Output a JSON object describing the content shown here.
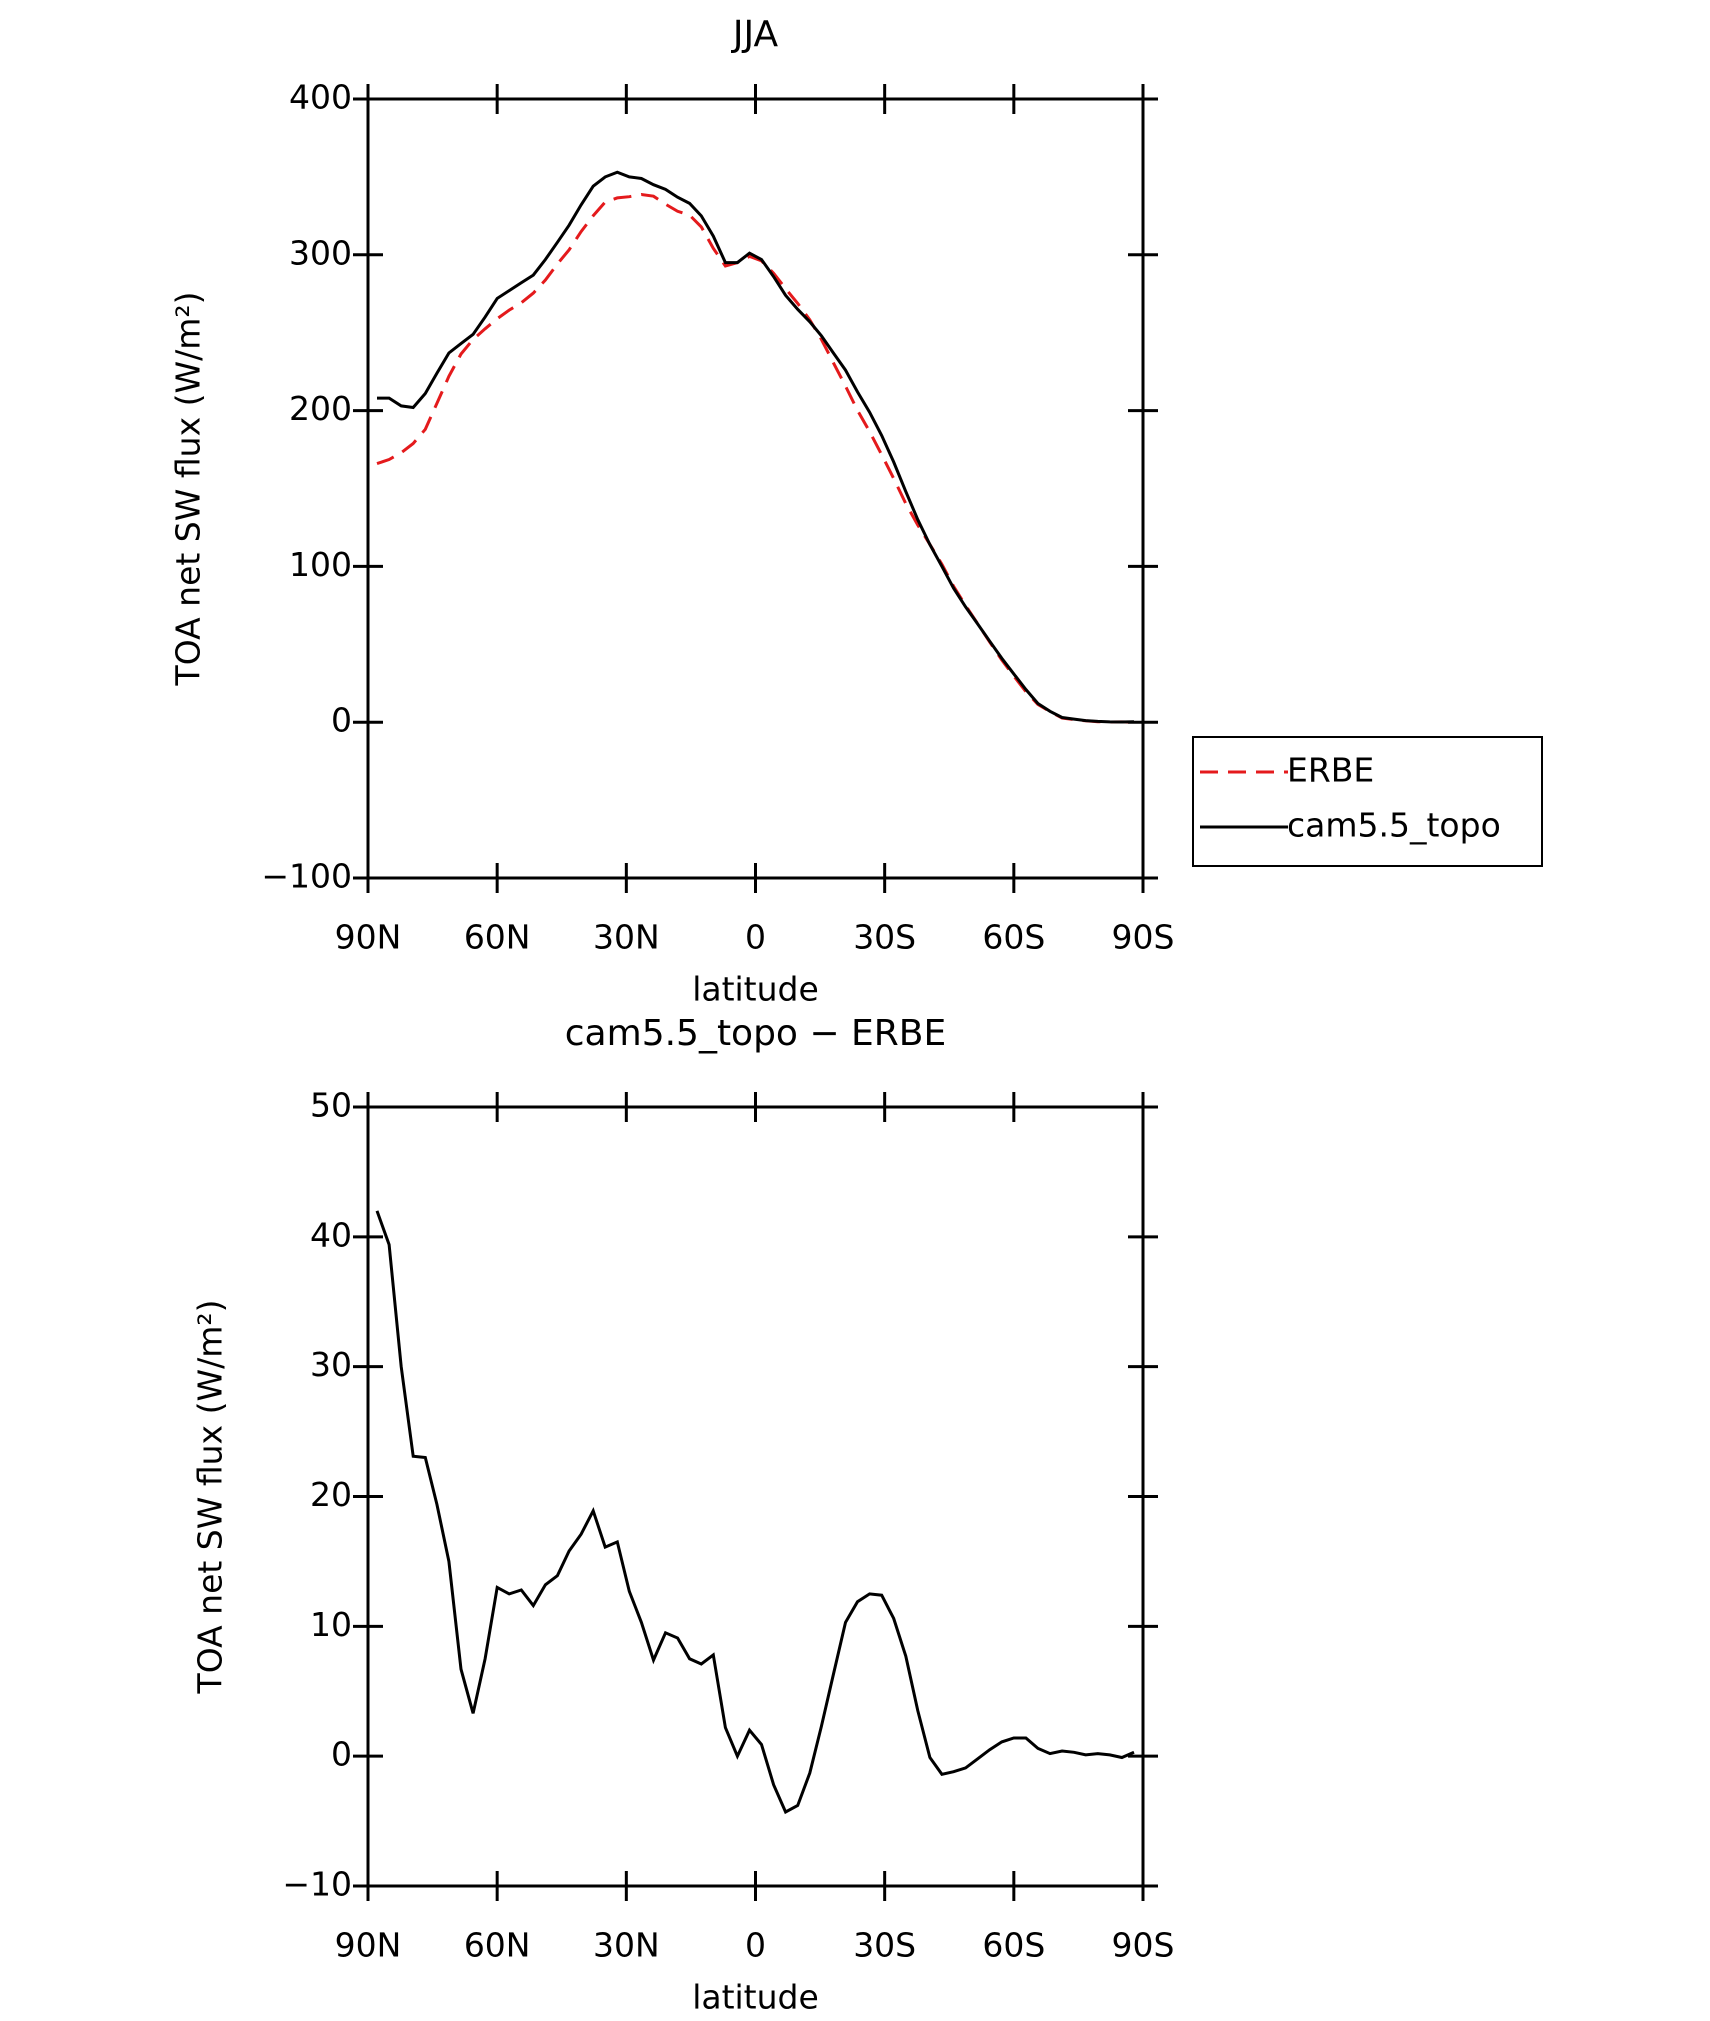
{
  "chart_data": [
    {
      "type": "line",
      "title": "JJA",
      "xlabel": "latitude",
      "ylabel": "TOA net SW flux (W/m²)",
      "x": [
        87.9,
        85.1,
        82.3,
        79.5,
        76.7,
        74.0,
        71.2,
        68.4,
        65.6,
        62.8,
        60.0,
        57.2,
        54.4,
        51.6,
        48.8,
        46.0,
        43.3,
        40.5,
        37.7,
        34.9,
        32.1,
        29.3,
        26.5,
        23.7,
        20.9,
        18.1,
        15.3,
        12.6,
        9.8,
        7.0,
        4.2,
        1.4,
        -1.4,
        -4.2,
        -7.0,
        -9.8,
        -12.6,
        -15.3,
        -18.1,
        -20.9,
        -23.7,
        -26.5,
        -29.3,
        -32.1,
        -34.9,
        -37.7,
        -40.5,
        -43.3,
        -46.0,
        -48.8,
        -51.6,
        -54.4,
        -57.2,
        -60.0,
        -62.8,
        -65.6,
        -68.4,
        -71.2,
        -74.0,
        -76.7,
        -79.5,
        -82.3,
        -85.1,
        -87.9
      ],
      "series": [
        {
          "name": "ERBE",
          "color": "#e41a1c",
          "linestyle": "dashed",
          "values": [
            166,
            168.6,
            173,
            178.9,
            188,
            204.6,
            222,
            236.3,
            245.7,
            252.5,
            259,
            264.5,
            269.2,
            275.4,
            283.8,
            294.1,
            303.2,
            314.9,
            325.1,
            333.9,
            336.5,
            337.3,
            338.7,
            337.6,
            332.5,
            327.9,
            325.5,
            317.9,
            304.2,
            292.8,
            295,
            299,
            296.1,
            288.2,
            278.3,
            268.8,
            258.3,
            245.7,
            230.7,
            215.7,
            200.1,
            186.5,
            171.6,
            156.4,
            140.3,
            126.5,
            114.1,
            101.4,
            87.2,
            74.9,
            63.2,
            51.5,
            39.9,
            29.6,
            19.6,
            11.4,
            6.8,
            2.6,
            1.7,
            0.9,
            0.3,
            0.1,
            0.2,
            0
          ]
        },
        {
          "name": "cam5.5_topo",
          "color": "#000000",
          "linestyle": "solid",
          "values": [
            208,
            208,
            203,
            202,
            211,
            224,
            237,
            243,
            249,
            260,
            272,
            277,
            282,
            287,
            297,
            308,
            319,
            332,
            344,
            350,
            353,
            350,
            349,
            345,
            342,
            337,
            333,
            325,
            312,
            295,
            295,
            301,
            297,
            286,
            274,
            265,
            257,
            248,
            237,
            226,
            212,
            199,
            184,
            167,
            148,
            130,
            114,
            100,
            86,
            74,
            63,
            52,
            41,
            31,
            21,
            12,
            7,
            3,
            2,
            1,
            0.5,
            0.2,
            0.1,
            0.3
          ]
        }
      ],
      "xlim": [
        90,
        -90
      ],
      "xticks": [
        {
          "value": 90,
          "label": "90N"
        },
        {
          "value": 60,
          "label": "60N"
        },
        {
          "value": 30,
          "label": "30N"
        },
        0,
        {
          "value": -30,
          "label": "30S"
        },
        {
          "value": -60,
          "label": "60S"
        },
        {
          "value": -90,
          "label": "90S"
        }
      ],
      "ylim": [
        -100,
        400
      ],
      "yticks": [
        {
          "value": -100,
          "label": "−100"
        },
        0,
        100,
        200,
        300,
        400
      ],
      "legend": "right"
    },
    {
      "type": "line",
      "title": "cam5.5_topo − ERBE",
      "xlabel": "latitude",
      "ylabel": "TOA net SW flux (W/m²)",
      "x": [
        87.9,
        85.1,
        82.3,
        79.5,
        76.7,
        74.0,
        71.2,
        68.4,
        65.6,
        62.8,
        60.0,
        57.2,
        54.4,
        51.6,
        48.8,
        46.0,
        43.3,
        40.5,
        37.7,
        34.9,
        32.1,
        29.3,
        26.5,
        23.7,
        20.9,
        18.1,
        15.3,
        12.6,
        9.8,
        7.0,
        4.2,
        1.4,
        -1.4,
        -4.2,
        -7.0,
        -9.8,
        -12.6,
        -15.3,
        -18.1,
        -20.9,
        -23.7,
        -26.5,
        -29.3,
        -32.1,
        -34.9,
        -37.7,
        -40.5,
        -43.3,
        -46.0,
        -48.8,
        -51.6,
        -54.4,
        -57.2,
        -60.0,
        -62.8,
        -65.6,
        -68.4,
        -71.2,
        -74.0,
        -76.7,
        -79.5,
        -82.3,
        -85.1,
        -87.9
      ],
      "series": [
        {
          "color": "#000000",
          "linestyle": "solid",
          "values": [
            42,
            39.4,
            30,
            23.1,
            23,
            19.4,
            15,
            6.7,
            3.3,
            7.5,
            13,
            12.5,
            12.8,
            11.6,
            13.2,
            13.9,
            15.8,
            17.1,
            18.9,
            16.1,
            16.5,
            12.7,
            10.3,
            7.4,
            9.5,
            9.1,
            7.5,
            7.1,
            7.8,
            2.2,
            0,
            2,
            0.9,
            -2.2,
            -4.3,
            -3.8,
            -1.3,
            2.3,
            6.3,
            10.3,
            11.9,
            12.5,
            12.4,
            10.6,
            7.7,
            3.5,
            -0.1,
            -1.4,
            -1.2,
            -0.9,
            -0.2,
            0.5,
            1.1,
            1.4,
            1.4,
            0.6,
            0.2,
            0.4,
            0.3,
            0.1,
            0.2,
            0.1,
            -0.1,
            0.3
          ]
        }
      ],
      "xlim": [
        90,
        -90
      ],
      "xticks": [
        {
          "value": 90,
          "label": "90N"
        },
        {
          "value": 60,
          "label": "60N"
        },
        {
          "value": 30,
          "label": "30N"
        },
        0,
        {
          "value": -30,
          "label": "30S"
        },
        {
          "value": -60,
          "label": "60S"
        },
        {
          "value": -90,
          "label": "90S"
        }
      ],
      "ylim": [
        -10,
        50
      ],
      "yticks": [
        {
          "value": -10,
          "label": "−10"
        },
        0,
        10,
        20,
        30,
        40,
        50
      ]
    }
  ]
}
